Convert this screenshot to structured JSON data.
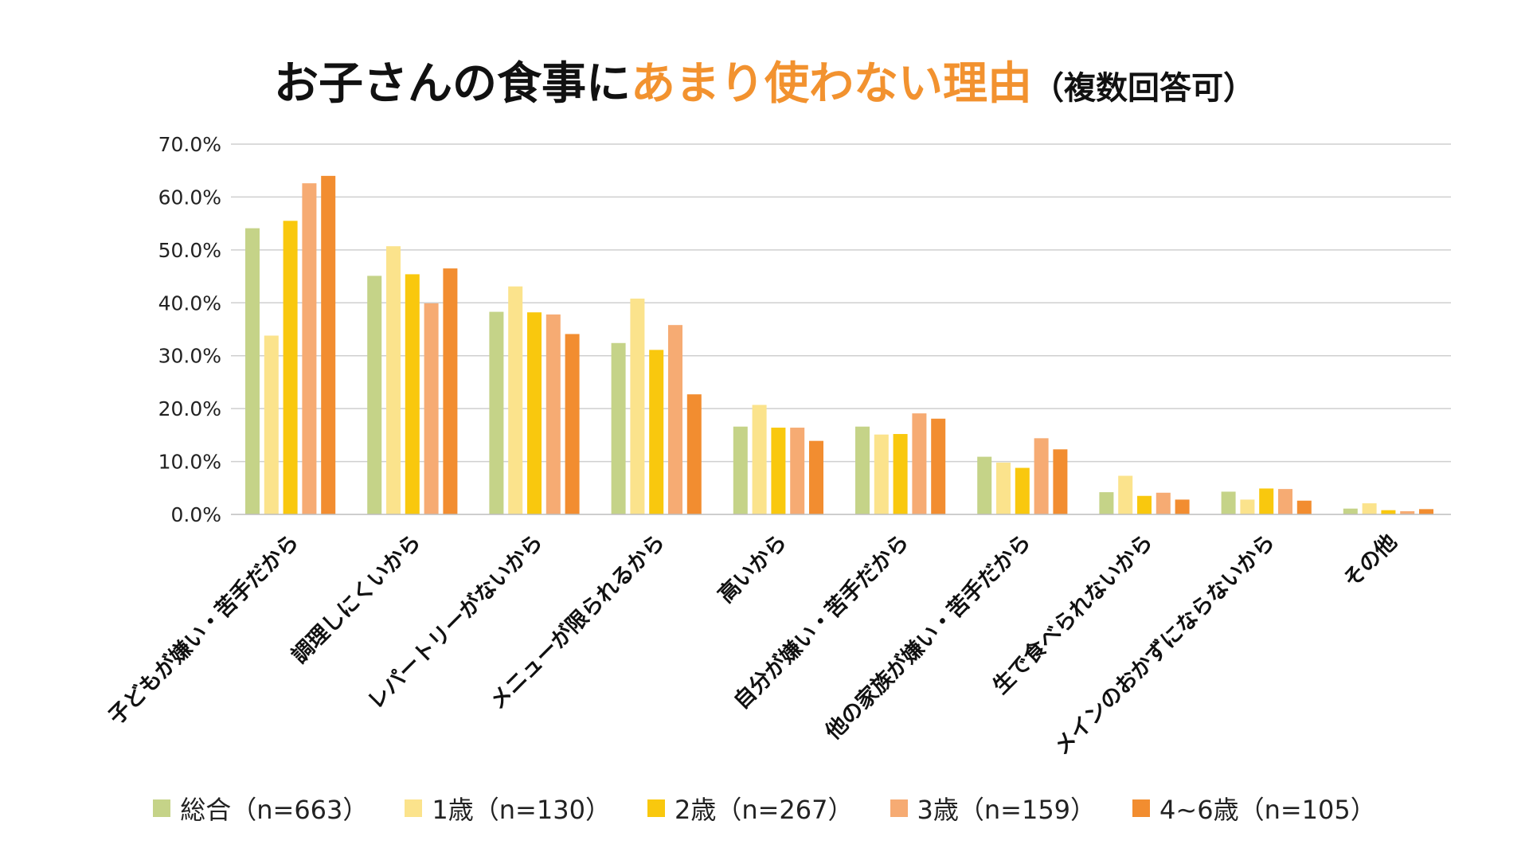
{
  "title": {
    "main": "お子さんの食事に",
    "accent": "あまり使わない理由",
    "note": "（複数回答可）"
  },
  "colors": {
    "title_accent": "#f2922f",
    "grid": "#cfcfcf",
    "axis": "#bdbdbd"
  },
  "chart_data": {
    "type": "bar",
    "title": "お子さんの食事にあまり使わない理由（複数回答可）",
    "xlabel": "",
    "ylabel": "",
    "ylim": [
      0,
      70
    ],
    "yticks": [
      "0.0%",
      "10.0%",
      "20.0%",
      "30.0%",
      "40.0%",
      "50.0%",
      "60.0%",
      "70.0%"
    ],
    "grid": true,
    "legend_position": "bottom",
    "categories": [
      "子どもが嫌い・苦手だから",
      "調理しにくいから",
      "レパートリーがないから",
      "メニューが限られるから",
      "高いから",
      "自分が嫌い・苦手だから",
      "他の家族が嫌い・苦手だから",
      "生で食べられないから",
      "メインのおかずにならないから",
      "その他"
    ],
    "series": [
      {
        "name": "総合（n=663）",
        "color": "#c5d388",
        "values": [
          54.1,
          45.1,
          38.3,
          32.4,
          16.6,
          16.6,
          10.9,
          4.2,
          4.3,
          1.1
        ]
      },
      {
        "name": "1歳（n=130）",
        "color": "#fbe38c",
        "values": [
          33.8,
          50.7,
          43.1,
          40.8,
          20.7,
          15.1,
          9.8,
          7.3,
          2.8,
          2.1
        ]
      },
      {
        "name": "2歳（n=267）",
        "color": "#f9c80e",
        "values": [
          55.5,
          45.4,
          38.2,
          31.1,
          16.4,
          15.2,
          8.8,
          3.5,
          4.9,
          0.8
        ]
      },
      {
        "name": "3歳（n=159）",
        "color": "#f6ab73",
        "values": [
          62.6,
          39.9,
          37.8,
          35.8,
          16.4,
          19.1,
          14.4,
          4.1,
          4.8,
          0.6
        ]
      },
      {
        "name": "4~6歳（n=105）",
        "color": "#f28d30",
        "values": [
          64.0,
          46.5,
          34.1,
          22.7,
          13.9,
          18.1,
          12.3,
          2.8,
          2.6,
          1.0
        ]
      }
    ]
  }
}
